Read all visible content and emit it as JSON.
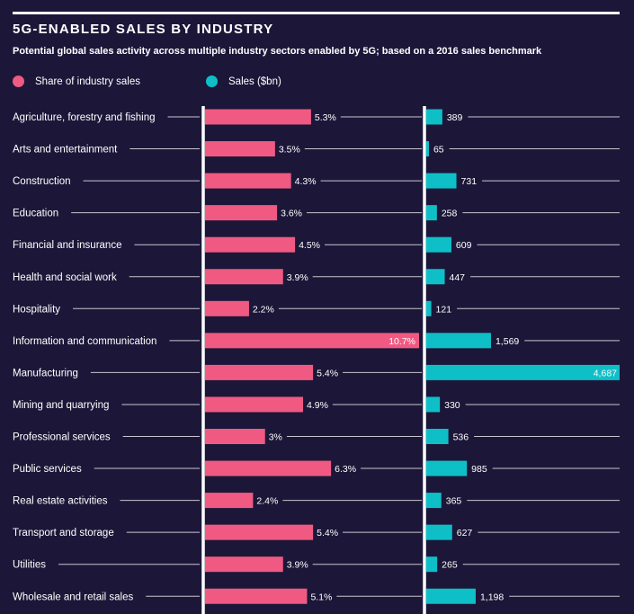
{
  "title": "5G-ENABLED SALES BY INDUSTRY",
  "subtitle": "Potential global sales activity across multiple industry sectors enabled by 5G; based on a 2016 sales benchmark",
  "colors": {
    "background": "#1c1739",
    "share": "#f05a82",
    "sales": "#0fbfc8",
    "text": "#ffffff"
  },
  "chart_data": {
    "type": "bar",
    "legend_placement": "top-left",
    "categories": [
      "Agriculture, forestry and fishing",
      "Arts and entertainment",
      "Construction",
      "Education",
      "Financial and insurance",
      "Health and social work",
      "Hospitality",
      "Information and communication",
      "Manufacturing",
      "Mining and quarrying",
      "Professional services",
      "Public services",
      "Real estate activities",
      "Transport and storage",
      "Utilities",
      "Wholesale and retail sales"
    ],
    "series": [
      {
        "name": "Share of industry sales",
        "values": [
          5.3,
          3.5,
          4.3,
          3.6,
          4.5,
          3.9,
          2.2,
          10.7,
          5.4,
          4.9,
          3,
          6.3,
          2.4,
          5.4,
          3.9,
          5.1
        ],
        "labels": [
          "5.3%",
          "3.5%",
          "4.3%",
          "3.6%",
          "4.5%",
          "3.9%",
          "2.2%",
          "10.7%",
          "5.4%",
          "4.9%",
          "3%",
          "6.3%",
          "2.4%",
          "5.4%",
          "3.9%",
          "5.1%"
        ]
      },
      {
        "name": "Sales ($bn)",
        "values": [
          389,
          65,
          731,
          258,
          609,
          447,
          121,
          1569,
          4687,
          330,
          536,
          985,
          365,
          627,
          265,
          1198
        ],
        "labels": [
          "389",
          "65",
          "731",
          "258",
          "609",
          "447",
          "121",
          "1,569",
          "4,687",
          "330",
          "536",
          "985",
          "365",
          "627",
          "265",
          "1,198"
        ]
      }
    ]
  }
}
